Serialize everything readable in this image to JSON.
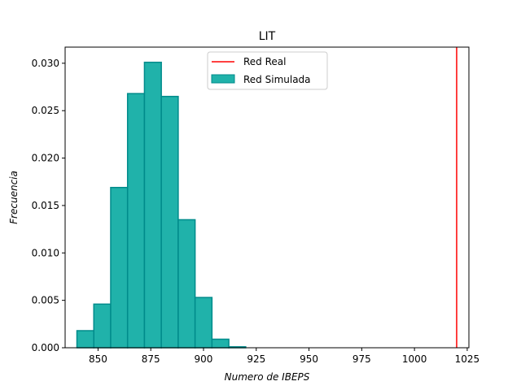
{
  "chart_data": {
    "type": "bar",
    "title": "LIT",
    "xlabel": "Numero de IBEPS",
    "ylabel": "Frecuencia",
    "xlim": [
      834.4,
      1025.8
    ],
    "ylim": [
      0,
      0.0317
    ],
    "x_ticks": [
      850,
      875,
      900,
      925,
      950,
      975,
      1000,
      1025
    ],
    "y_ticks": [
      0.0,
      0.005,
      0.01,
      0.015,
      0.02,
      0.025,
      0.03
    ],
    "x_tick_labels": [
      "850",
      "875",
      "900",
      "925",
      "950",
      "975",
      "1000",
      "1025"
    ],
    "y_tick_labels": [
      "0.000",
      "0.005",
      "0.010",
      "0.015",
      "0.020",
      "0.025",
      "0.030"
    ],
    "grid": false,
    "legend_position": "top-center",
    "series": [
      {
        "name": "Red Simulada",
        "kind": "histogram",
        "color": "#20b2aa",
        "edge_color": "#008b8b",
        "bin_edges": [
          840,
          848,
          856,
          864,
          872,
          880,
          888,
          896,
          904,
          912,
          920
        ],
        "values": [
          0.0018,
          0.0046,
          0.0169,
          0.0268,
          0.0301,
          0.0265,
          0.0135,
          0.0053,
          0.0009,
          0.0001
        ]
      },
      {
        "name": "Red Real",
        "kind": "vline",
        "color": "#ff0000",
        "x": 1020
      }
    ]
  }
}
